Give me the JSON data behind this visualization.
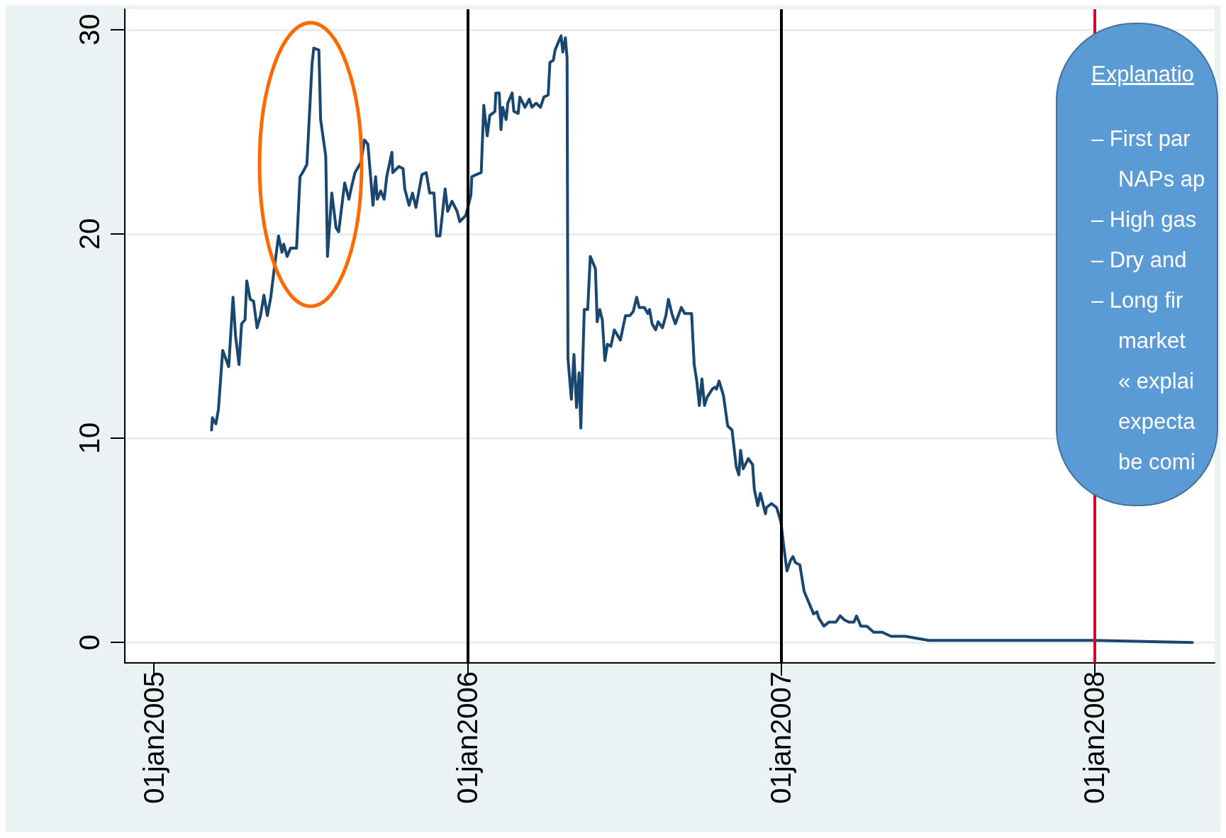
{
  "chart_data": {
    "type": "line",
    "xlim": [
      "2004-11-28",
      "2008-05-20"
    ],
    "xticks": [
      {
        "value": "2005-01-01",
        "label": "01jan2005"
      },
      {
        "value": "2006-01-01",
        "label": "01jan2006"
      },
      {
        "value": "2007-01-01",
        "label": "01jan2007"
      },
      {
        "value": "2008-01-01",
        "label": "01jan2008"
      }
    ],
    "ylim": [
      -1,
      31
    ],
    "yticks": [
      0,
      10,
      20,
      30
    ],
    "grid": "y",
    "marker": "none",
    "ref_lines": [
      {
        "axis": "x",
        "value": "2006-01-01",
        "color": "#000000"
      },
      {
        "axis": "x",
        "value": "2007-01-01",
        "color": "#000000"
      },
      {
        "axis": "x",
        "value": "2008-01-01",
        "color": "#c8102e"
      }
    ],
    "annotations": [
      "Explanatio",
      "– First par\nNAPs ap",
      "– High gas",
      "– Dry and",
      "– Long fir\nmarket\n« explai\nexpecta\nbe comi"
    ],
    "series": [
      {
        "color": "#1a476f",
        "x": [
          "2005-03-09",
          "2005-03-10",
          "2005-03-14",
          "2005-03-17",
          "2005-03-22",
          "2005-03-29",
          "2005-04-03",
          "2005-04-06",
          "2005-04-10",
          "2005-04-13",
          "2005-04-17",
          "2005-04-19",
          "2005-04-23",
          "2005-04-27",
          "2005-05-01",
          "2005-05-05",
          "2005-05-09",
          "2005-05-13",
          "2005-05-17",
          "2005-05-21",
          "2005-05-26",
          "2005-05-30",
          "2005-06-01",
          "2005-06-05",
          "2005-06-09",
          "2005-06-16",
          "2005-06-20",
          "2005-06-23",
          "2005-06-28",
          "2005-07-04",
          "2005-07-06",
          "2005-07-12",
          "2005-07-14",
          "2005-07-20",
          "2005-07-22",
          "2005-07-27",
          "2005-08-01",
          "2005-08-04",
          "2005-08-11",
          "2005-08-16",
          "2005-08-19",
          "2005-08-23",
          "2005-08-30",
          "2005-09-03",
          "2005-09-07",
          "2005-09-13",
          "2005-09-16",
          "2005-09-18",
          "2005-09-22",
          "2005-09-26",
          "2005-09-29",
          "2005-10-05",
          "2005-10-06",
          "2005-10-13",
          "2005-10-18",
          "2005-10-20",
          "2005-10-25",
          "2005-10-29",
          "2005-11-02",
          "2005-11-09",
          "2005-11-14",
          "2005-11-18",
          "2005-11-23",
          "2005-11-26",
          "2005-11-30",
          "2005-12-06",
          "2005-12-09",
          "2005-12-14",
          "2005-12-20",
          "2005-12-23",
          "2005-12-30",
          "2006-01-05",
          "2006-01-06",
          "2006-01-11",
          "2006-01-17",
          "2006-01-20",
          "2006-01-24",
          "2006-01-27",
          "2006-02-02",
          "2006-02-03",
          "2006-02-07",
          "2006-02-09",
          "2006-02-11",
          "2006-02-15",
          "2006-02-17",
          "2006-02-22",
          "2006-02-24",
          "2006-03-01",
          "2006-03-03",
          "2006-03-09",
          "2006-03-14",
          "2006-03-17",
          "2006-03-22",
          "2006-03-27",
          "2006-03-31",
          "2006-04-05",
          "2006-04-07",
          "2006-04-11",
          "2006-04-13",
          "2006-04-20",
          "2006-04-22",
          "2006-04-25",
          "2006-04-27",
          "2006-04-28",
          "2006-05-02",
          "2006-05-05",
          "2006-05-08",
          "2006-05-11",
          "2006-05-13",
          "2006-05-17",
          "2006-05-21",
          "2006-05-24",
          "2006-05-30",
          "2006-06-01",
          "2006-06-04",
          "2006-06-07",
          "2006-06-10",
          "2006-06-13",
          "2006-06-17",
          "2006-06-21",
          "2006-06-28",
          "2006-07-04",
          "2006-07-09",
          "2006-07-13",
          "2006-07-17",
          "2006-07-20",
          "2006-07-26",
          "2006-07-30",
          "2006-08-01",
          "2006-08-04",
          "2006-08-08",
          "2006-08-11",
          "2006-08-16",
          "2006-08-20",
          "2006-08-23",
          "2006-08-27",
          "2006-08-31",
          "2006-09-07",
          "2006-09-11",
          "2006-09-19",
          "2006-09-22",
          "2006-09-25",
          "2006-09-28",
          "2006-10-01",
          "2006-10-04",
          "2006-10-07",
          "2006-10-13",
          "2006-10-16",
          "2006-10-18",
          "2006-10-21",
          "2006-10-26",
          "2006-10-31",
          "2006-11-05",
          "2006-11-10",
          "2006-11-13",
          "2006-11-15",
          "2006-11-18",
          "2006-11-24",
          "2006-11-29",
          "2006-12-01",
          "2006-12-05",
          "2006-12-08",
          "2006-12-14",
          "2006-12-15",
          "2006-12-21",
          "2006-12-27",
          "2007-01-01",
          "2007-01-04",
          "2007-01-08",
          "2007-01-12",
          "2007-01-15",
          "2007-01-18",
          "2007-01-23",
          "2007-01-28",
          "2007-02-02",
          "2007-02-08",
          "2007-02-12",
          "2007-02-14",
          "2007-02-20",
          "2007-02-26",
          "2007-03-06",
          "2007-03-11",
          "2007-03-16",
          "2007-03-21",
          "2007-03-27",
          "2007-03-30",
          "2007-04-04",
          "2007-04-11",
          "2007-04-19",
          "2007-04-29",
          "2007-05-09",
          "2007-05-26",
          "2007-06-09",
          "2007-06-22",
          "2007-08-08",
          "2007-10-14",
          "2008-01-01",
          "2008-04-24"
        ],
        "values": [
          10.4,
          11.0,
          10.7,
          11.4,
          14.3,
          13.5,
          16.9,
          15.0,
          13.6,
          15.6,
          15.8,
          17.7,
          16.8,
          16.7,
          15.4,
          16.0,
          17.0,
          16.0,
          16.9,
          18.3,
          19.9,
          19.1,
          19.5,
          18.9,
          19.3,
          19.3,
          22.8,
          23.0,
          23.4,
          28.3,
          29.1,
          29.0,
          25.6,
          23.8,
          18.9,
          22.0,
          20.3,
          20.1,
          22.5,
          21.7,
          22.3,
          23.0,
          23.5,
          24.6,
          24.4,
          21.4,
          22.8,
          21.7,
          22.1,
          21.7,
          22.8,
          24.0,
          23.0,
          23.3,
          23.2,
          22.2,
          21.4,
          22.0,
          21.3,
          22.9,
          23.0,
          22.0,
          22.0,
          19.9,
          19.9,
          22.2,
          21.1,
          21.6,
          21.1,
          20.6,
          20.9,
          21.9,
          22.8,
          22.9,
          23.0,
          26.3,
          24.8,
          25.8,
          26.0,
          26.9,
          26.9,
          25.1,
          26.2,
          25.6,
          26.4,
          26.9,
          26.0,
          25.9,
          26.7,
          26.2,
          26.6,
          26.2,
          26.4,
          26.2,
          26.7,
          26.8,
          28.4,
          28.5,
          29.0,
          29.7,
          28.9,
          29.6,
          28.6,
          13.9,
          11.9,
          14.1,
          11.5,
          13.2,
          10.5,
          16.3,
          16.3,
          18.9,
          18.3,
          15.7,
          16.3,
          15.8,
          13.8,
          14.6,
          14.5,
          15.3,
          14.8,
          16.0,
          16.0,
          16.2,
          16.9,
          16.4,
          16.4,
          16.1,
          16.3,
          15.6,
          15.3,
          15.7,
          15.4,
          16.0,
          16.8,
          16.1,
          15.6,
          16.4,
          16.1,
          16.1,
          13.6,
          12.8,
          11.6,
          12.9,
          11.6,
          12.0,
          12.4,
          12.5,
          12.4,
          12.8,
          12.1,
          10.6,
          10.4,
          8.6,
          8.2,
          9.4,
          8.5,
          9.0,
          8.7,
          7.5,
          6.7,
          7.3,
          6.3,
          6.6,
          6.8,
          6.6,
          5.9,
          4.8,
          3.5,
          4.0,
          4.2,
          3.9,
          3.8,
          2.5,
          2.0,
          1.4,
          1.5,
          1.2,
          0.8,
          1.0,
          1.0,
          1.3,
          1.1,
          1.0,
          1.0,
          1.3,
          0.8,
          0.8,
          0.5,
          0.5,
          0.3,
          0.3,
          0.2,
          0.1,
          0.1,
          0.1,
          0.1,
          0.0
        ]
      }
    ]
  }
}
